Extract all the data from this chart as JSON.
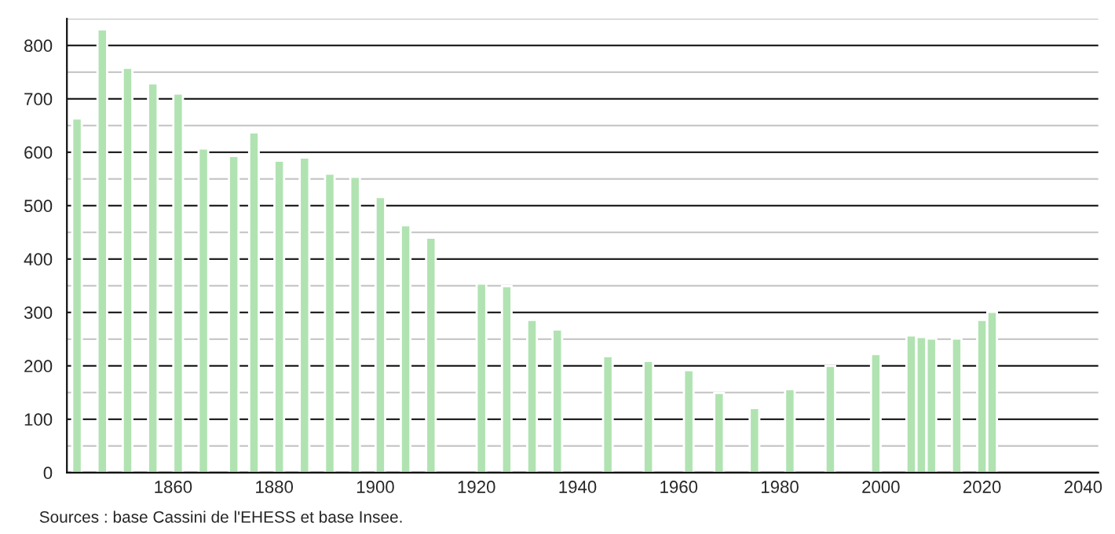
{
  "chart_data": {
    "type": "bar",
    "x": [
      1841,
      1846,
      1851,
      1856,
      1861,
      1866,
      1872,
      1876,
      1881,
      1886,
      1891,
      1896,
      1901,
      1906,
      1911,
      1921,
      1926,
      1931,
      1936,
      1946,
      1954,
      1962,
      1968,
      1975,
      1982,
      1990,
      1999,
      2006,
      2008,
      2010,
      2015,
      2020,
      2022
    ],
    "values": [
      663,
      830,
      758,
      729,
      710,
      607,
      593,
      637,
      584,
      590,
      560,
      554,
      516,
      463,
      440,
      354,
      349,
      286,
      268,
      218,
      209,
      192,
      149,
      121,
      156,
      200,
      222,
      257,
      254,
      251,
      251,
      286,
      301
    ],
    "color": "#b0e3b1",
    "xlim": [
      1839,
      2043
    ],
    "xticks": [
      1860,
      1880,
      1900,
      1920,
      1940,
      1960,
      1980,
      2000,
      2020,
      2040
    ],
    "ylim": [
      0,
      850
    ],
    "yticks": [
      0,
      {
        "value": 50,
        "label": null
      },
      100,
      {
        "value": 150,
        "label": null
      },
      200,
      {
        "value": 250,
        "label": null
      },
      300,
      {
        "value": 350,
        "label": null
      },
      400,
      {
        "value": 450,
        "label": null
      },
      500,
      {
        "value": 550,
        "label": null
      },
      600,
      {
        "value": 650,
        "label": null
      },
      700,
      {
        "value": 750,
        "label": null
      },
      800,
      {
        "value": 850,
        "label": null
      }
    ],
    "grid": "y",
    "annotations": [
      "Sources : base Cassini de l'EHESS et base Insee."
    ]
  }
}
